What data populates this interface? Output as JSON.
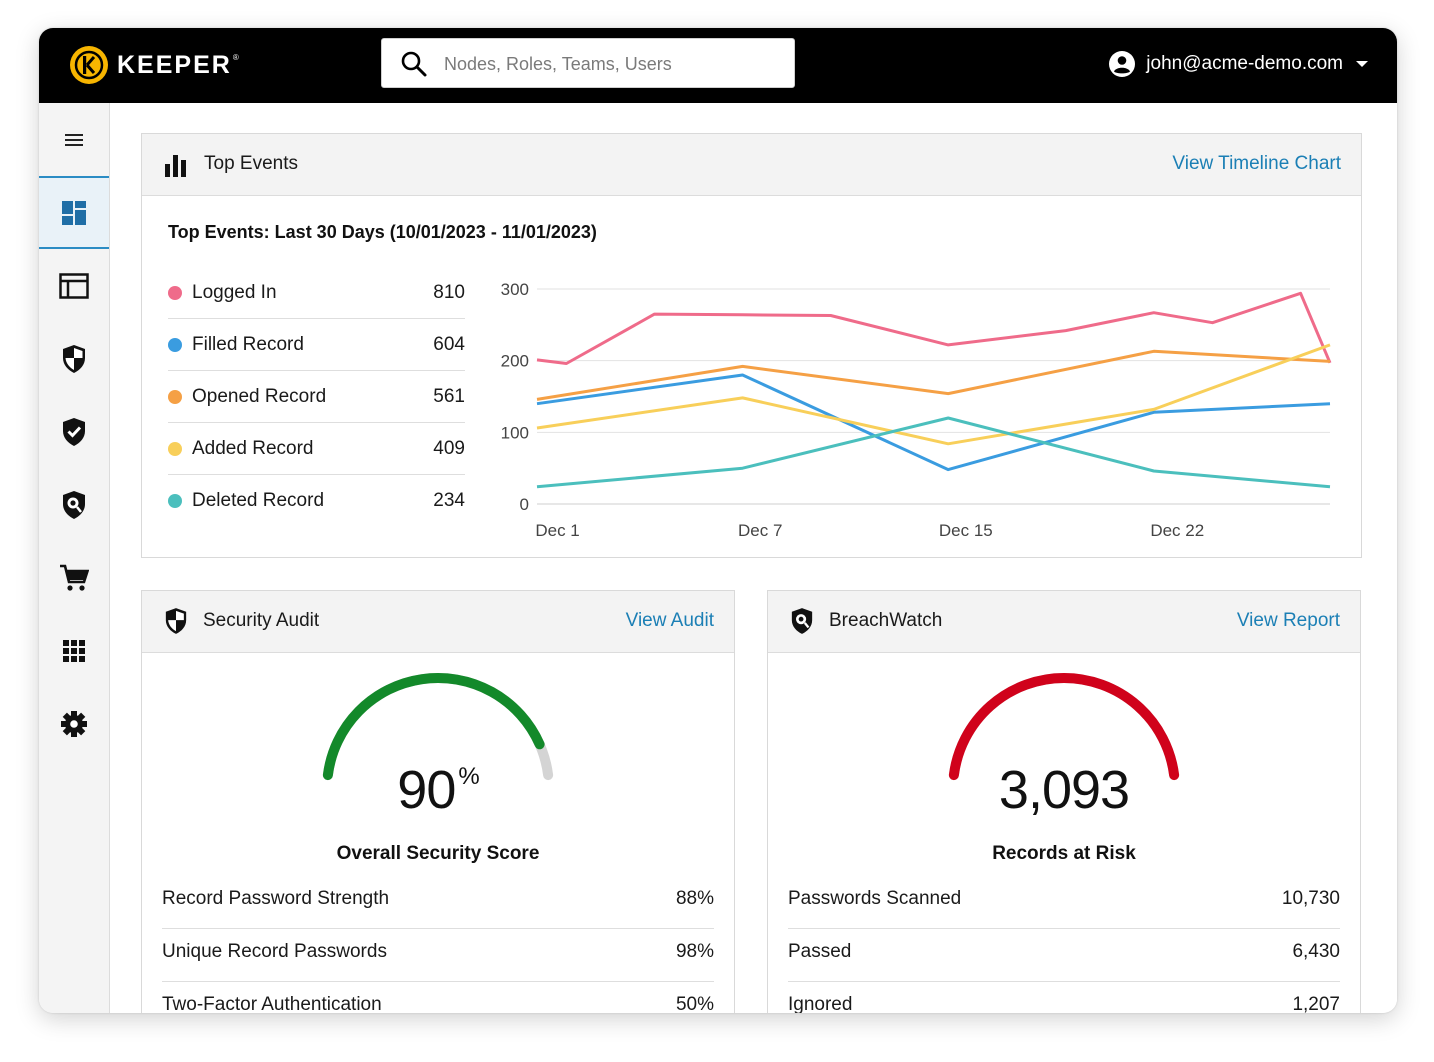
{
  "app": {
    "logo_text": "KEEPER",
    "logo_mark": "®",
    "search_placeholder": "Nodes, Roles, Teams, Users",
    "user_email": "john@acme-demo.com"
  },
  "sidebar": {
    "items": [
      {
        "name": "menu",
        "icon": "hamburger-icon"
      },
      {
        "name": "dashboard",
        "icon": "dashboard-icon",
        "active": true
      },
      {
        "name": "admin",
        "icon": "layout-icon"
      },
      {
        "name": "security-audit",
        "icon": "shield-half-icon"
      },
      {
        "name": "compliance",
        "icon": "shield-check-icon"
      },
      {
        "name": "breachwatch",
        "icon": "shield-eye-icon"
      },
      {
        "name": "store",
        "icon": "cart-icon"
      },
      {
        "name": "apps",
        "icon": "grid-icon"
      },
      {
        "name": "settings",
        "icon": "gear-icon"
      }
    ]
  },
  "top_events": {
    "title": "Top Events",
    "link": "View Timeline Chart",
    "subtitle": "Top Events: Last 30 Days (10/01/2023 - 11/01/2023)",
    "legend": [
      {
        "name": "Logged In",
        "value": "810",
        "color": "#ef6b8a"
      },
      {
        "name": "Filled Record",
        "value": "604",
        "color": "#3a9ce0"
      },
      {
        "name": "Opened Record",
        "value": "561",
        "color": "#f5a045"
      },
      {
        "name": "Added Record",
        "value": "409",
        "color": "#f8cf5a"
      },
      {
        "name": "Deleted Record",
        "value": "234",
        "color": "#4bbfbd"
      }
    ]
  },
  "chart_data": {
    "type": "line",
    "x_labels": [
      "Dec 1",
      "Dec 7",
      "Dec 15",
      "Dec 22"
    ],
    "x": [
      0,
      0.5,
      3.5,
      6.5,
      9.5,
      12.5,
      15.5,
      18.5,
      21.5,
      24.5,
      27,
      28.5,
      30
    ],
    "ylim": [
      0,
      300
    ],
    "yticks": [
      0,
      100,
      200,
      300
    ],
    "grid": true,
    "series": [
      {
        "name": "Logged In",
        "color": "#ef6b8a",
        "points": [
          [
            0,
            201
          ],
          [
            1,
            196
          ],
          [
            4,
            265
          ],
          [
            7,
            264
          ],
          [
            10,
            263
          ],
          [
            14,
            222
          ],
          [
            18,
            242
          ],
          [
            21,
            267
          ],
          [
            23,
            253
          ],
          [
            26,
            294
          ],
          [
            27,
            197
          ]
        ]
      },
      {
        "name": "Filled Record",
        "color": "#3a9ce0",
        "points": [
          [
            0,
            140
          ],
          [
            7,
            180
          ],
          [
            14,
            48
          ],
          [
            21,
            128
          ],
          [
            27,
            140
          ]
        ]
      },
      {
        "name": "Opened Record",
        "color": "#f5a045",
        "points": [
          [
            0,
            146
          ],
          [
            7,
            192
          ],
          [
            14,
            154
          ],
          [
            21,
            213
          ],
          [
            27,
            199
          ]
        ]
      },
      {
        "name": "Added Record",
        "color": "#f8cf5a",
        "points": [
          [
            0,
            106
          ],
          [
            7,
            148
          ],
          [
            14,
            84
          ],
          [
            21,
            132
          ],
          [
            27,
            222
          ]
        ]
      },
      {
        "name": "Deleted Record",
        "color": "#4bbfbd",
        "points": [
          [
            0,
            24
          ],
          [
            7,
            50
          ],
          [
            14,
            120
          ],
          [
            21,
            46
          ],
          [
            27,
            24
          ]
        ]
      }
    ]
  },
  "security_audit": {
    "title": "Security Audit",
    "link": "View Audit",
    "score": "90",
    "score_unit": "%",
    "score_fraction": 0.9,
    "score_label": "Overall Security Score",
    "color": "#13892a",
    "rows": [
      {
        "label": "Record Password Strength",
        "value": "88%"
      },
      {
        "label": "Unique Record Passwords",
        "value": "98%"
      },
      {
        "label": "Two-Factor Authentication",
        "value": "50%"
      }
    ]
  },
  "breachwatch": {
    "title": "BreachWatch",
    "link": "View Report",
    "value": "3,093",
    "value_fraction": 1.0,
    "value_label": "Records at Risk",
    "color": "#d0021b",
    "rows": [
      {
        "label": "Passwords Scanned",
        "value": "10,730"
      },
      {
        "label": "Passed",
        "value": "6,430"
      },
      {
        "label": "Ignored",
        "value": "1,207"
      }
    ]
  }
}
